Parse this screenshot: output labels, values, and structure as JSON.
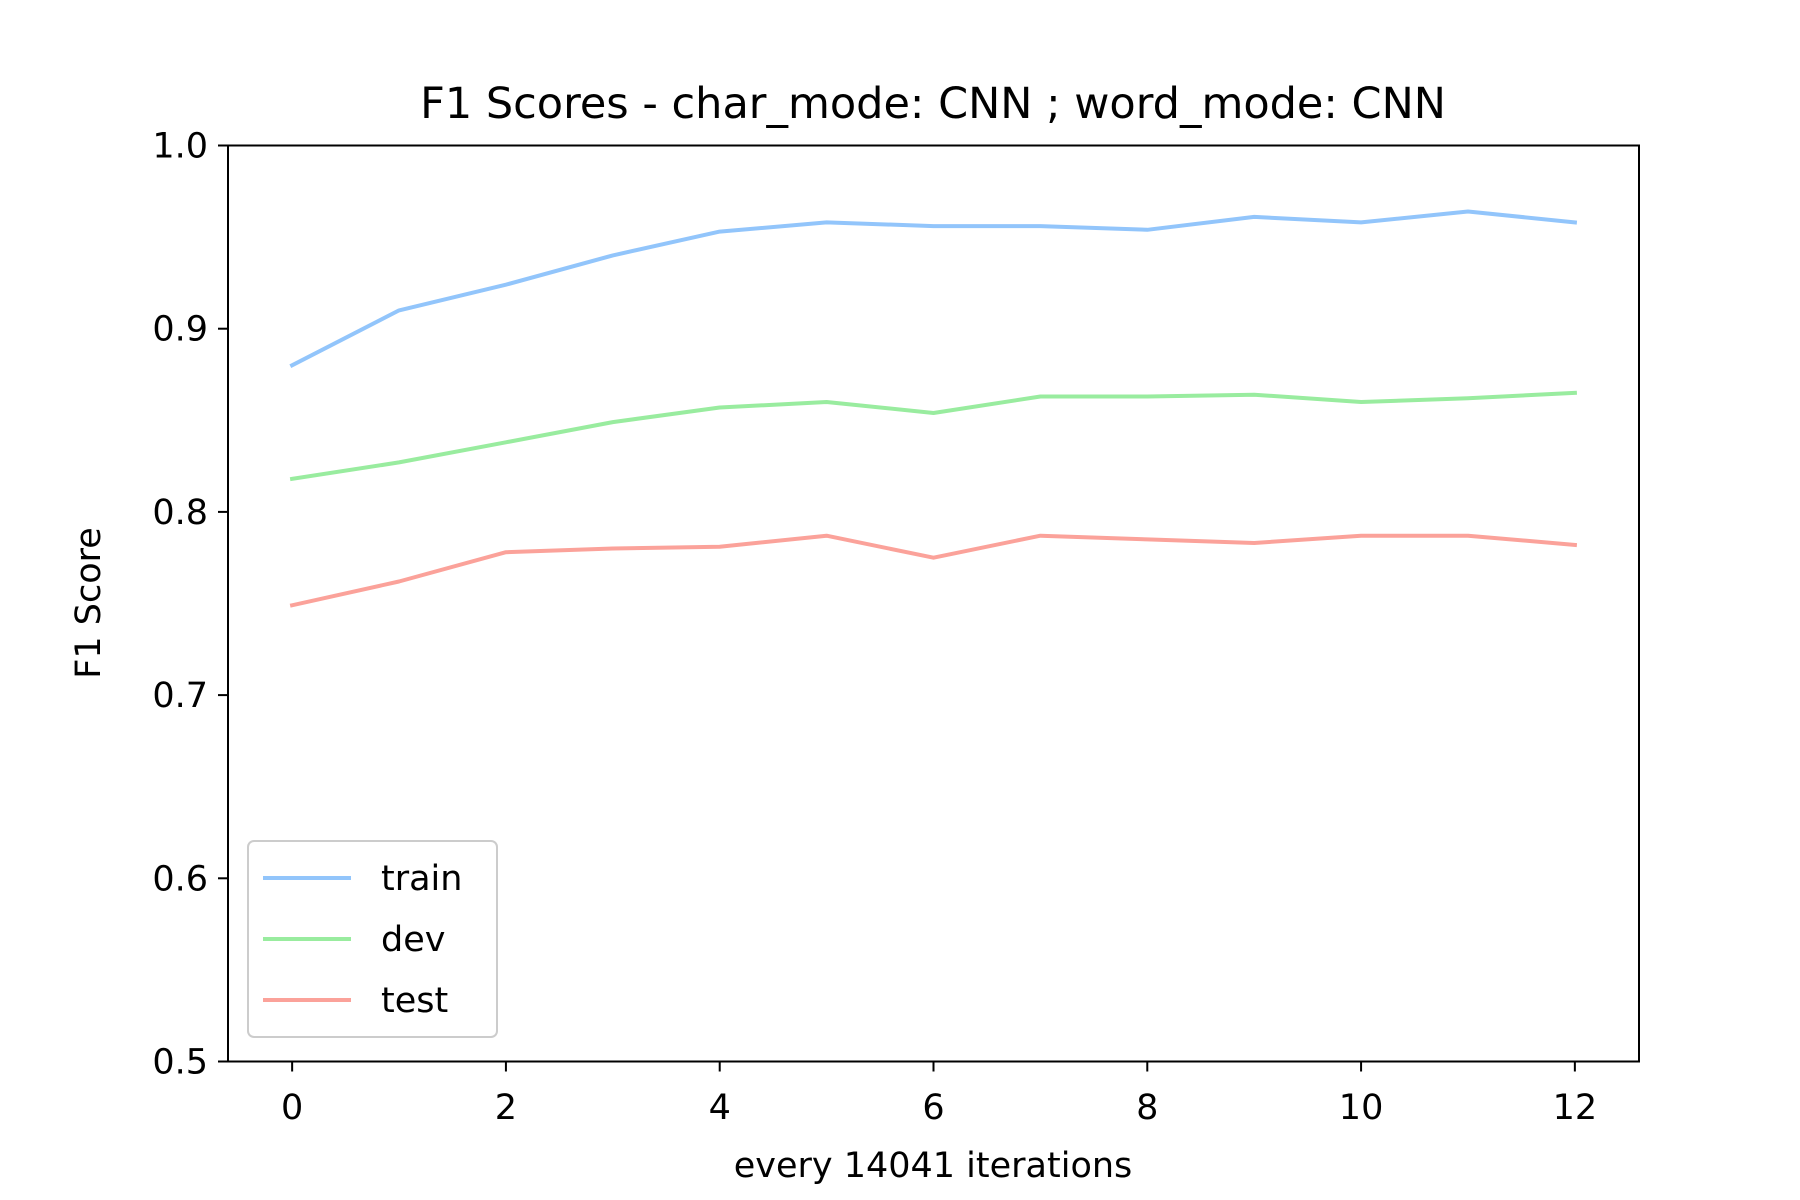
{
  "chart_data": {
    "type": "line",
    "title": "F1 Scores - char_mode: CNN ; word_mode: CNN",
    "xlabel": "every 14041 iterations",
    "ylabel": "F1 Score",
    "xlim": [
      -0.6,
      12.6
    ],
    "ylim": [
      0.5,
      1.0
    ],
    "xticks": [
      0,
      2,
      4,
      6,
      8,
      10,
      12
    ],
    "yticks": [
      "0.5",
      "0.6",
      "0.7",
      "0.8",
      "0.9",
      "1.0"
    ],
    "grid": false,
    "legend_position": "lower-left",
    "x": [
      0,
      1,
      2,
      3,
      4,
      5,
      6,
      7,
      8,
      9,
      10,
      11,
      12
    ],
    "series": [
      {
        "name": "train",
        "color": "#92c5fb",
        "values": [
          0.88,
          0.91,
          0.924,
          0.94,
          0.953,
          0.958,
          0.956,
          0.956,
          0.954,
          0.961,
          0.958,
          0.964,
          0.958
        ]
      },
      {
        "name": "dev",
        "color": "#99ec9f",
        "values": [
          0.818,
          0.827,
          0.838,
          0.849,
          0.857,
          0.86,
          0.854,
          0.863,
          0.863,
          0.864,
          0.86,
          0.862,
          0.865
        ]
      },
      {
        "name": "test",
        "color": "#fba29a",
        "values": [
          0.749,
          0.762,
          0.778,
          0.78,
          0.781,
          0.787,
          0.775,
          0.787,
          0.785,
          0.783,
          0.787,
          0.787,
          0.782
        ]
      }
    ]
  }
}
